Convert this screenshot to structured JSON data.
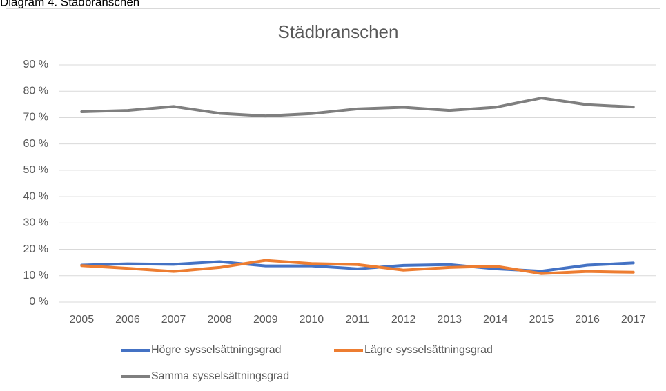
{
  "caption": "Diagram 4. Städbranschen",
  "chart_data": {
    "type": "line",
    "title": "Städbranschen",
    "categories": [
      "2005",
      "2006",
      "2007",
      "2008",
      "2009",
      "2010",
      "2011",
      "2012",
      "2013",
      "2014",
      "2015",
      "2016",
      "2017"
    ],
    "series": [
      {
        "name": "Högre sysselsättningsgrad",
        "color": "#4472c4",
        "values": [
          14,
          14.5,
          14.3,
          15.3,
          13.7,
          13.7,
          12.6,
          13.9,
          14.2,
          12.6,
          11.7,
          14,
          14.8
        ]
      },
      {
        "name": "Lägre sysselsättningsgrad",
        "color": "#ed7d31",
        "values": [
          13.8,
          12.8,
          11.6,
          13.1,
          15.8,
          14.6,
          14.2,
          12.1,
          13.1,
          13.6,
          10.8,
          11.6,
          11.3
        ]
      },
      {
        "name": "Samma sysselsättningsgrad",
        "color": "#7f7f7f",
        "values": [
          72.2,
          72.7,
          74.2,
          71.6,
          70.6,
          71.5,
          73.3,
          73.9,
          72.7,
          73.9,
          77.4,
          74.9,
          74
        ]
      }
    ],
    "ylim": [
      0,
      90
    ],
    "yticks": [
      {
        "value": 0,
        "label": "0 %"
      },
      {
        "value": 10,
        "label": "10 %"
      },
      {
        "value": 20,
        "label": "20 %"
      },
      {
        "value": 30,
        "label": "30 %"
      },
      {
        "value": 40,
        "label": "40 %"
      },
      {
        "value": 50,
        "label": "50 %"
      },
      {
        "value": 60,
        "label": "60 %"
      },
      {
        "value": 70,
        "label": "70 %"
      },
      {
        "value": 80,
        "label": "80 %"
      },
      {
        "value": 90,
        "label": "90 %"
      }
    ],
    "grid": true,
    "legend": "bottom"
  }
}
